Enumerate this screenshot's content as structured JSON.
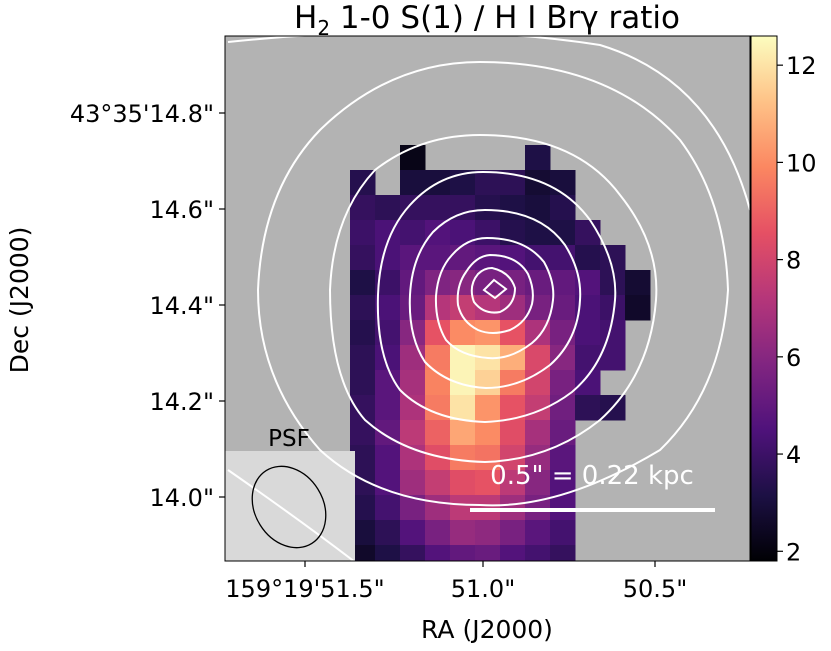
{
  "chart_data": {
    "type": "heatmap",
    "title_prefix": "H",
    "title_sub": "2",
    "title_suffix": " 1-0 S(1) / H I Brγ ratio",
    "xlabel": "RA (J2000)",
    "ylabel": "Dec (J2000)",
    "x_tick_labels": [
      "159°19'51.5\"",
      "51.0\"",
      "50.5\""
    ],
    "y_tick_labels": [
      "43°35'14.8\"",
      "14.6\"",
      "14.4\"",
      "14.2\"",
      "14.0\""
    ],
    "colorbar": {
      "colormap": "magma",
      "range": [
        1.8,
        12.6
      ],
      "ticks": [
        2,
        4,
        6,
        8,
        10,
        12
      ],
      "tick_labels": [
        "2",
        "4",
        "6",
        "8",
        "10",
        "12"
      ]
    },
    "psf_label": "PSF",
    "scalebar_label": "0.5\" = 0.22 kpc",
    "background_color": "#b3b3b3",
    "psf_box_color": "#d9d9d9",
    "contour_color": "#ffffff",
    "grid_origin_row": 0,
    "grid_origin_col": 0,
    "grid": [
      [
        null,
        null,
        null,
        null,
        null,
        null,
        null,
        null,
        null,
        null,
        null,
        null,
        null,
        null,
        null,
        null,
        null,
        null,
        null,
        null,
        null,
        null
      ],
      [
        null,
        null,
        null,
        null,
        null,
        null,
        null,
        null,
        null,
        null,
        null,
        null,
        null,
        null,
        null,
        null,
        null,
        null,
        null,
        null,
        null,
        null
      ],
      [
        null,
        null,
        null,
        null,
        null,
        null,
        null,
        null,
        null,
        null,
        null,
        null,
        null,
        null,
        null,
        null,
        null,
        null,
        null,
        null,
        null,
        null
      ],
      [
        null,
        null,
        null,
        null,
        null,
        null,
        null,
        null,
        null,
        null,
        null,
        null,
        null,
        null,
        null,
        null,
        null,
        null,
        null,
        null,
        null,
        null
      ],
      [
        null,
        null,
        null,
        null,
        null,
        null,
        null,
        null,
        null,
        null,
        null,
        null,
        null,
        null,
        null,
        null,
        null,
        null,
        null,
        null,
        null,
        null
      ],
      [
        null,
        null,
        null,
        null,
        null,
        null,
        null,
        null,
        null,
        null,
        null,
        null,
        null,
        null,
        null,
        null,
        null,
        null,
        null,
        null,
        null,
        null
      ],
      [
        null,
        null,
        null,
        null,
        null,
        null,
        null,
        2.2,
        null,
        null,
        null,
        null,
        3.2,
        null,
        null,
        null,
        null,
        null,
        null,
        null,
        null,
        null
      ],
      [
        null,
        null,
        null,
        null,
        null,
        3.4,
        null,
        3.0,
        3.0,
        3.2,
        3.6,
        3.6,
        2.8,
        3.0,
        null,
        null,
        null,
        null,
        null,
        null,
        null,
        null
      ],
      [
        null,
        null,
        null,
        null,
        null,
        3.8,
        3.6,
        3.8,
        3.8,
        3.8,
        3.4,
        3.2,
        3.0,
        3.4,
        null,
        null,
        null,
        null,
        null,
        null,
        null,
        null
      ],
      [
        null,
        null,
        null,
        null,
        null,
        4.0,
        4.4,
        4.2,
        4.6,
        4.4,
        4.0,
        3.4,
        3.2,
        3.2,
        3.8,
        null,
        null,
        null,
        null,
        null,
        null,
        null
      ],
      [
        null,
        null,
        null,
        null,
        null,
        3.8,
        4.4,
        4.8,
        4.8,
        5.0,
        4.8,
        4.6,
        4.2,
        4.2,
        3.4,
        3.6,
        null,
        null,
        null,
        null,
        null,
        null
      ],
      [
        null,
        null,
        null,
        null,
        null,
        3.2,
        4.0,
        5.0,
        5.8,
        6.0,
        5.6,
        5.6,
        5.2,
        5.0,
        4.6,
        3.6,
        2.8,
        null,
        null,
        null,
        null,
        null
      ],
      [
        null,
        null,
        null,
        null,
        null,
        3.6,
        4.4,
        5.2,
        7.2,
        7.6,
        7.2,
        6.6,
        5.6,
        5.2,
        4.4,
        4.0,
        2.6,
        null,
        null,
        null,
        null,
        null
      ],
      [
        null,
        null,
        null,
        null,
        null,
        3.4,
        4.2,
        6.0,
        8.6,
        10.0,
        10.2,
        8.6,
        7.0,
        5.6,
        4.4,
        4.2,
        null,
        null,
        null,
        null,
        null,
        null
      ],
      [
        null,
        null,
        null,
        null,
        null,
        3.6,
        4.4,
        6.6,
        9.6,
        12.4,
        12.0,
        10.8,
        8.2,
        6.0,
        4.2,
        4.2,
        null,
        null,
        null,
        null,
        null,
        null
      ],
      [
        null,
        null,
        null,
        null,
        null,
        3.6,
        4.8,
        6.8,
        9.8,
        12.4,
        11.6,
        9.6,
        8.0,
        5.6,
        4.4,
        null,
        null,
        null,
        null,
        null,
        null,
        null
      ],
      [
        null,
        null,
        null,
        null,
        null,
        3.8,
        4.8,
        7.0,
        9.6,
        12.0,
        10.2,
        8.6,
        7.6,
        5.4,
        3.6,
        3.4,
        null,
        null,
        null,
        null,
        null,
        null
      ],
      [
        null,
        null,
        null,
        null,
        null,
        3.8,
        5.0,
        7.4,
        9.0,
        10.6,
        10.0,
        8.4,
        6.8,
        5.2,
        null,
        null,
        null,
        null,
        null,
        null,
        null,
        null
      ],
      [
        null,
        null,
        null,
        null,
        null,
        3.6,
        4.6,
        7.0,
        8.4,
        9.6,
        9.4,
        8.0,
        6.4,
        4.8,
        null,
        null,
        null,
        null,
        null,
        null,
        null,
        null
      ],
      [
        null,
        null,
        null,
        null,
        2.8,
        3.6,
        4.6,
        6.6,
        7.6,
        8.4,
        8.6,
        7.4,
        6.0,
        4.6,
        null,
        null,
        null,
        null,
        null,
        null,
        null,
        null
      ],
      [
        null,
        null,
        null,
        null,
        null,
        3.4,
        4.2,
        5.6,
        6.6,
        7.4,
        7.4,
        6.6,
        5.6,
        4.6,
        null,
        null,
        null,
        null,
        null,
        null,
        null,
        null
      ],
      [
        null,
        null,
        null,
        null,
        null,
        3.0,
        3.6,
        4.6,
        5.6,
        6.4,
        6.2,
        5.6,
        4.8,
        4.2,
        null,
        null,
        null,
        null,
        null,
        null,
        null,
        null
      ],
      [
        null,
        null,
        null,
        null,
        null,
        2.6,
        3.2,
        3.8,
        4.6,
        5.0,
        5.2,
        4.6,
        4.2,
        3.8,
        null,
        null,
        null,
        null,
        null,
        null,
        null,
        null
      ],
      [
        null,
        null,
        null,
        null,
        null,
        2.0,
        2.2,
        3.2,
        3.6,
        4.0,
        3.8,
        3.6,
        3.8,
        null,
        null,
        null,
        null,
        null,
        null,
        null,
        null,
        null
      ],
      [
        null,
        null,
        null,
        null,
        null,
        null,
        null,
        2.2,
        null,
        3.4,
        3.2,
        null,
        null,
        null,
        null,
        null,
        null,
        null,
        null,
        null,
        null,
        null
      ],
      [
        null,
        null,
        null,
        null,
        null,
        null,
        null,
        null,
        null,
        null,
        null,
        null,
        null,
        null,
        null,
        null,
        null,
        null,
        null,
        null,
        null,
        null
      ],
      [
        null,
        null,
        null,
        null,
        null,
        null,
        null,
        null,
        null,
        null,
        null,
        null,
        null,
        null,
        null,
        null,
        null,
        null,
        null,
        null,
        null,
        null
      ]
    ]
  }
}
